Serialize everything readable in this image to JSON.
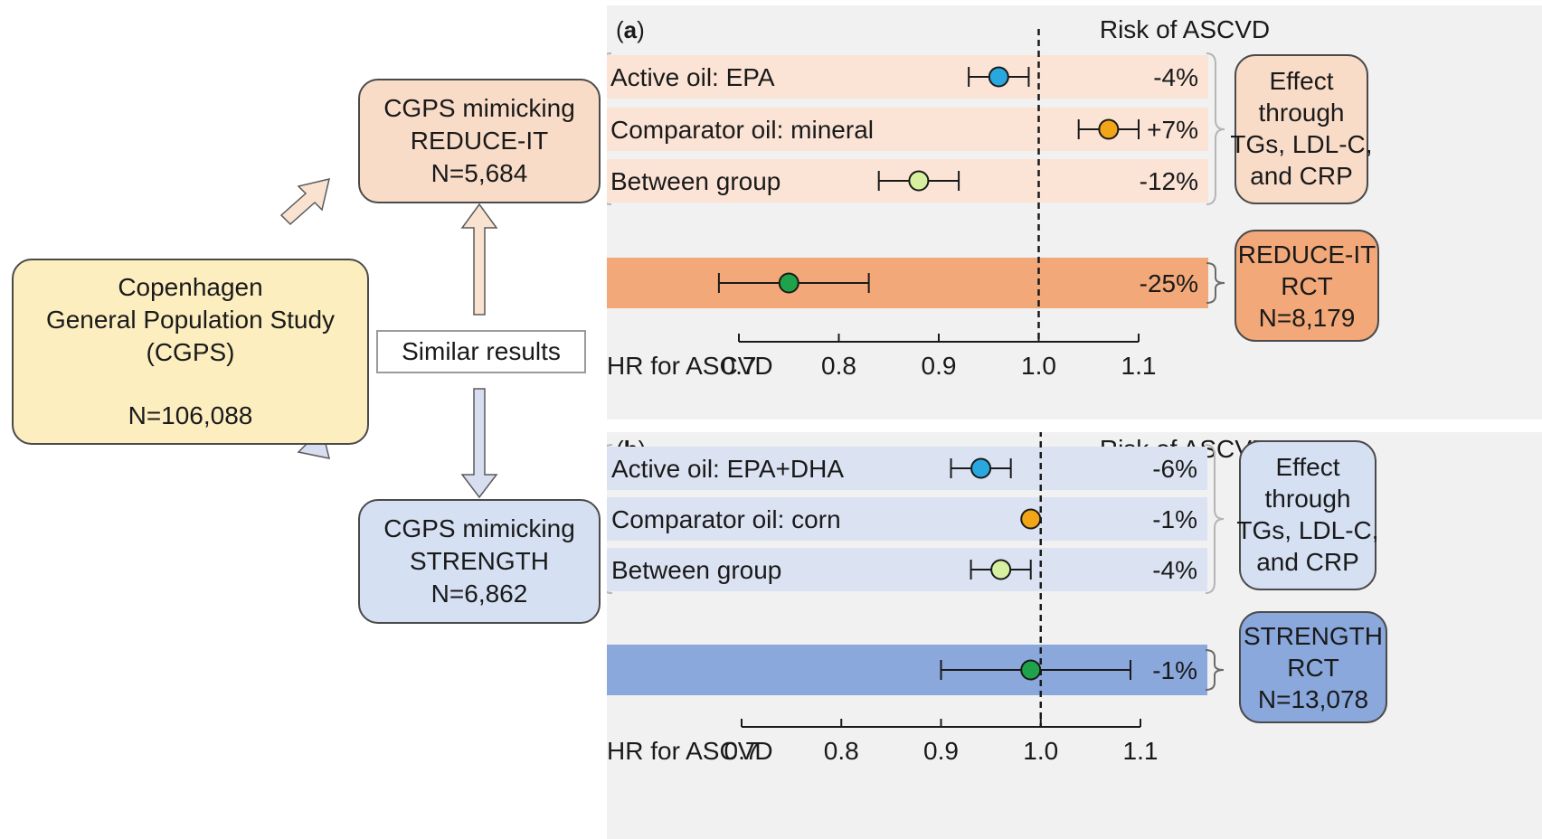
{
  "flow": {
    "cgps": {
      "line1": "Copenhagen",
      "line2": "General Population Study",
      "line3": "(CGPS)",
      "n": "N=106,088"
    },
    "reduce_mimic": {
      "line1": "CGPS mimicking",
      "line2": "REDUCE-IT",
      "n": "N=5,684"
    },
    "strength_mimic": {
      "line1": "CGPS mimicking",
      "line2": "STRENGTH",
      "n": "N=6,862"
    },
    "similar": "Similar results"
  },
  "chart_data": [
    {
      "type": "forest",
      "panel_label": "a",
      "title": "Risk of ASCVD",
      "xlabel": "HR for ASCVD",
      "xticks": [
        "0.7",
        "0.8",
        "0.9",
        "1.0",
        "1.1"
      ],
      "xlim": [
        0.7,
        1.1
      ],
      "reference_line": 1.0,
      "rows": [
        {
          "label": "Active oil: EPA",
          "hr": 0.96,
          "ci": [
            0.93,
            0.99
          ],
          "effect": "-4%",
          "color": "#29a8e0"
        },
        {
          "label": "Comparator oil: mineral",
          "hr": 1.07,
          "ci": [
            1.04,
            1.1
          ],
          "effect": "+7%",
          "color": "#f2a516"
        },
        {
          "label": "Between group",
          "hr": 0.88,
          "ci": [
            0.84,
            0.92
          ],
          "effect": "-12%",
          "color": "#d6f0a0"
        }
      ],
      "rct": {
        "hr": 0.75,
        "ci": [
          0.68,
          0.83
        ],
        "effect": "-25%",
        "color": "#1fa34a"
      },
      "effect_box": {
        "line1": "Effect",
        "line2": "through",
        "line3": "TGs, LDL-C,",
        "line4": "and CRP"
      },
      "rct_box": {
        "line1": "REDUCE-IT",
        "line2": "RCT",
        "line3": "N=8,179"
      },
      "colors": {
        "row_bg": "#fbe4d6",
        "rct_bar": "#f2a878",
        "rct_box": "#f2a878",
        "effect_box": "#f9dcc8"
      }
    },
    {
      "type": "forest",
      "panel_label": "b",
      "title": "Risk of ASCVD",
      "xlabel": "HR for ASCVD",
      "xticks": [
        "0.7",
        "0.8",
        "0.9",
        "1.0",
        "1.1"
      ],
      "xlim": [
        0.7,
        1.1
      ],
      "reference_line": 1.0,
      "rows": [
        {
          "label": "Active oil: EPA+DHA",
          "hr": 0.94,
          "ci": [
            0.91,
            0.97
          ],
          "effect": "-6%",
          "color": "#29a8e0"
        },
        {
          "label": "Comparator oil: corn",
          "hr": 0.99,
          "ci": [
            0.99,
            0.99
          ],
          "effect": "-1%",
          "color": "#f2a516"
        },
        {
          "label": "Between group",
          "hr": 0.96,
          "ci": [
            0.93,
            0.99
          ],
          "effect": "-4%",
          "color": "#d6f0a0"
        }
      ],
      "rct": {
        "hr": 0.99,
        "ci": [
          0.9,
          1.09
        ],
        "effect": "-1%",
        "color": "#1fa34a"
      },
      "effect_box": {
        "line1": "Effect",
        "line2": "through",
        "line3": "TGs, LDL-C,",
        "line4": "and CRP"
      },
      "rct_box": {
        "line1": "STRENGTH",
        "line2": "RCT",
        "line3": "N=13,078"
      },
      "colors": {
        "row_bg": "#dbe3f3",
        "rct_bar": "#8aa8dc",
        "rct_box": "#8aa8dc",
        "effect_box": "#d5e0f3"
      }
    }
  ]
}
